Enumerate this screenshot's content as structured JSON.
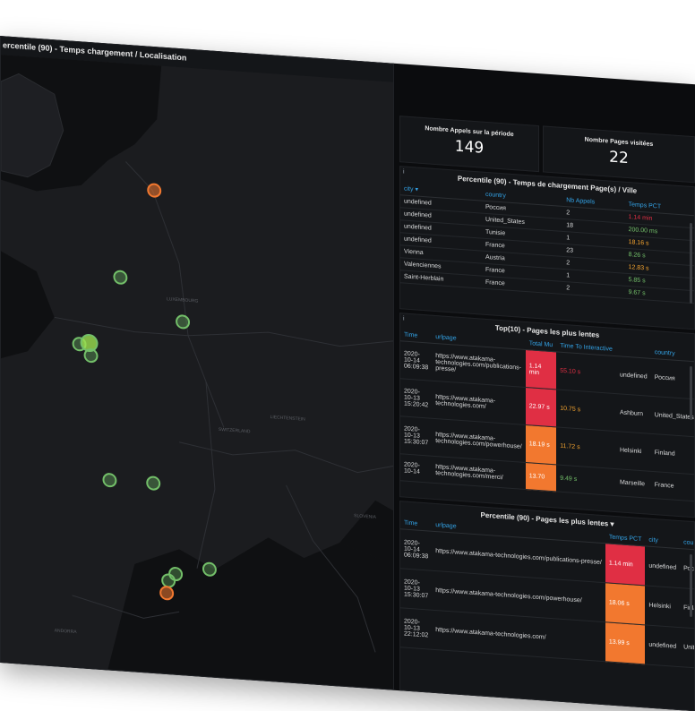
{
  "map_panel": {
    "title": "ercentile (90) - Temps chargement / Localisation",
    "labels": [
      "LUXEMBOURG",
      "SWITZERLAND",
      "LIECHTENSTEIN",
      "ANDORRA",
      "SLOVENIA"
    ],
    "marker_colors": {
      "green": "#73bf69",
      "orange": "#f2782f"
    }
  },
  "stat_calls": {
    "label": "Nombre Appels sur la période",
    "value": "149"
  },
  "stat_pages": {
    "label": "Nombre Pages visitées",
    "value": "22"
  },
  "city_table": {
    "title": "Percentile (90) - Temps de chargement Page(s) / Ville",
    "headers": [
      "city",
      "country",
      "Nb Appels",
      "Temps PCT"
    ],
    "rows": [
      [
        "undefined",
        "Россия",
        "2",
        "1.14 min"
      ],
      [
        "undefined",
        "United_States",
        "18",
        "200.00 ms"
      ],
      [
        "undefined",
        "Tunisie",
        "1",
        "18.16 s"
      ],
      [
        "undefined",
        "France",
        "23",
        "8.26 s"
      ],
      [
        "Vienna",
        "Austria",
        "2",
        "12.83 s"
      ],
      [
        "Valenciennes",
        "France",
        "1",
        "5.85 s"
      ],
      [
        "Saint-Herblain",
        "France",
        "2",
        "9.67 s"
      ]
    ]
  },
  "top10_table": {
    "title": "Top(10) - Pages les plus lentes",
    "headers": [
      "Time",
      "urlpage",
      "Total Mu",
      "Time To Interactive",
      "",
      "country"
    ],
    "rows": [
      {
        "time": "2020-10-14 06:09:38",
        "url": "https://www.atakama-technologies.com/publications-presse/",
        "total": "1.14 min",
        "tti": "55.10 s",
        "city": "undefined",
        "country": "Россия"
      },
      {
        "time": "2020-10-13 15:20:42",
        "url": "https://www.atakama-technologies.com/",
        "total": "22.97 s",
        "tti": "10.75 s",
        "city": "Ashburn",
        "country": "United_States"
      },
      {
        "time": "2020-10-13 15:30:07",
        "url": "https://www.atakama-technologies.com/powerhouse/",
        "total": "18.19 s",
        "tti": "11.72 s",
        "city": "Helsinki",
        "country": "Finland"
      },
      {
        "time": "2020-10-14",
        "url": "https://www.atakama-technologies.com/merci/",
        "total": "13.70",
        "tti": "9.49 s",
        "city": "Marseille",
        "country": "France"
      }
    ]
  },
  "pct_table": {
    "title": "Percentile (90) - Pages les plus lentes",
    "headers": [
      "Time",
      "urlpage",
      "Temps PCT",
      "city",
      "country"
    ],
    "rows": [
      {
        "time": "2020-10-14 06:09:38",
        "url": "https://www.atakama-technologies.com/publications-presse/",
        "pct": "1.14 min",
        "city": "undefined",
        "country": "Россия"
      },
      {
        "time": "2020-10-13 15:30:07",
        "url": "https://www.atakama-technologies.com/powerhouse/",
        "pct": "18.06 s",
        "city": "Helsinki",
        "country": "Finland"
      },
      {
        "time": "2020-10-13 22:12:02",
        "url": "https://www.atakama-technologies.com/",
        "pct": "13.99 s",
        "city": "undefined",
        "country": "United_States"
      }
    ]
  }
}
